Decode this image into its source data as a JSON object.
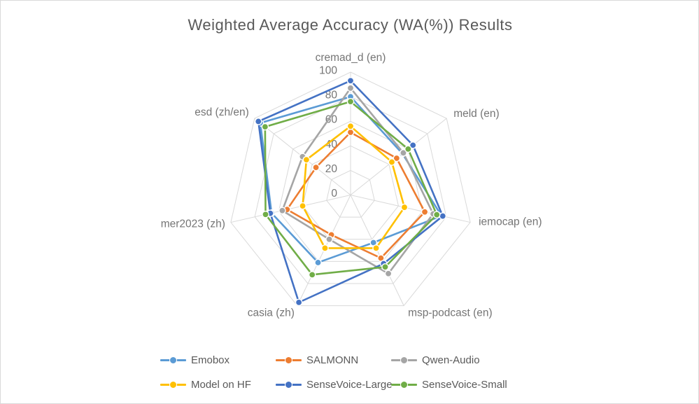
{
  "window": {
    "background": "#ffffff",
    "border_color": "#d9d9d9",
    "title_color": "#595959",
    "label_color": "#757575",
    "grid_color": "#d9d9d9"
  },
  "chart_data": {
    "type": "radar",
    "title": "Weighted Average Accuracy (WA(%)) Results",
    "categories": [
      "cremad_d (en)",
      "meld (en)",
      "iemocap (en)",
      "msp-podcast (en)",
      "casia (zh)",
      "mer2023 (zh)",
      "esd  (zh/en)"
    ],
    "ticks": [
      0,
      20,
      40,
      60,
      80,
      100
    ],
    "axis_range": [
      0,
      100
    ],
    "grid": true,
    "legend_position": "bottom",
    "series": [
      {
        "name": "Emobox",
        "color": "#5B9BD5",
        "values": [
          80,
          54,
          76,
          43,
          61,
          66,
          94
        ]
      },
      {
        "name": "SALMONN",
        "color": "#ED7D31",
        "values": [
          51,
          48,
          62,
          57,
          36,
          53,
          36
        ]
      },
      {
        "name": "Qwen-Audio",
        "color": "#A5A5A5",
        "values": [
          87,
          55,
          69,
          71,
          40,
          57,
          50
        ]
      },
      {
        "name": "Model on HF",
        "color": "#FFC000",
        "values": [
          56,
          43,
          45,
          48,
          48,
          40,
          46
        ]
      },
      {
        "name": "SenseVoice-Large",
        "color": "#4472C4",
        "values": [
          93,
          65,
          77,
          62,
          97,
          67,
          96
        ]
      },
      {
        "name": "SenseVoice-Small",
        "color": "#70AD47",
        "values": [
          76,
          60,
          72,
          65,
          72,
          71,
          89
        ]
      }
    ]
  }
}
